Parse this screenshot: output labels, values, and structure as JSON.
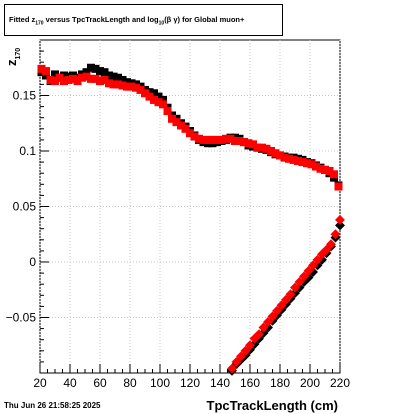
{
  "title": {
    "prefix": "Fitted  z",
    "z_subscript": "170",
    "middle": "  versus TpcTrackLength and log",
    "log_subscript": "10",
    "suffix": "(β   γ) for Global muon+"
  },
  "timestamp": "Thu Jun 26 21:58:25 2025",
  "chart_data": {
    "type": "scatter",
    "title": "Fitted z170 versus TpcTrackLength and log10(βγ) for Global muon+",
    "xlabel": "TpcTrackLength (cm)",
    "ylabel": "z170",
    "ylabel_main": "z",
    "ylabel_sub": "170",
    "xlim": [
      20,
      220
    ],
    "ylim": [
      -0.1,
      0.2
    ],
    "x_ticks": [
      20,
      40,
      60,
      80,
      100,
      120,
      140,
      160,
      180,
      200,
      220
    ],
    "y_ticks": [
      -0.05,
      0,
      0.05,
      0.1,
      0.15
    ],
    "y_tick_labels": [
      "−0.05",
      "0",
      "0.05",
      "0.1",
      "0.15"
    ],
    "grid": true,
    "series": [
      {
        "color": "#000000",
        "marker": "square",
        "points": [
          [
            21,
            0.171
          ],
          [
            24,
            0.168
          ],
          [
            27,
            0.163
          ],
          [
            30,
            0.169
          ],
          [
            33,
            0.166
          ],
          [
            36,
            0.168
          ],
          [
            39,
            0.167
          ],
          [
            42,
            0.168
          ],
          [
            45,
            0.166
          ],
          [
            48,
            0.169
          ],
          [
            51,
            0.171
          ],
          [
            54,
            0.175
          ],
          [
            57,
            0.174
          ],
          [
            60,
            0.172
          ],
          [
            63,
            0.171
          ],
          [
            66,
            0.168
          ],
          [
            69,
            0.167
          ],
          [
            72,
            0.166
          ],
          [
            75,
            0.164
          ],
          [
            78,
            0.162
          ],
          [
            81,
            0.161
          ],
          [
            84,
            0.16
          ],
          [
            87,
            0.158
          ],
          [
            90,
            0.155
          ],
          [
            93,
            0.153
          ],
          [
            96,
            0.152
          ],
          [
            99,
            0.149
          ],
          [
            102,
            0.146
          ],
          [
            105,
            0.139
          ],
          [
            108,
            0.132
          ],
          [
            111,
            0.129
          ],
          [
            114,
            0.125
          ],
          [
            117,
            0.122
          ],
          [
            120,
            0.118
          ],
          [
            123,
            0.114
          ],
          [
            126,
            0.11
          ],
          [
            129,
            0.108
          ],
          [
            132,
            0.107
          ],
          [
            135,
            0.107
          ],
          [
            138,
            0.108
          ],
          [
            141,
            0.109
          ],
          [
            144,
            0.11
          ],
          [
            147,
            0.112
          ],
          [
            150,
            0.112
          ],
          [
            153,
            0.111
          ],
          [
            156,
            0.108
          ],
          [
            159,
            0.105
          ],
          [
            162,
            0.104
          ],
          [
            165,
            0.103
          ],
          [
            168,
            0.102
          ],
          [
            171,
            0.101
          ],
          [
            174,
            0.099
          ],
          [
            177,
            0.097
          ],
          [
            180,
            0.096
          ],
          [
            183,
            0.095
          ],
          [
            186,
            0.094
          ],
          [
            189,
            0.094
          ],
          [
            192,
            0.093
          ],
          [
            195,
            0.092
          ],
          [
            198,
            0.09
          ],
          [
            201,
            0.089
          ],
          [
            204,
            0.087
          ],
          [
            207,
            0.085
          ],
          [
            210,
            0.083
          ],
          [
            213,
            0.08
          ],
          [
            216,
            0.076
          ],
          [
            219,
            0.069
          ],
          [
            148,
            -0.098
          ],
          [
            151,
            -0.092
          ],
          [
            154,
            -0.088
          ],
          [
            157,
            -0.084
          ],
          [
            160,
            -0.079
          ],
          [
            163,
            -0.074
          ],
          [
            166,
            -0.069
          ],
          [
            169,
            -0.064
          ],
          [
            172,
            -0.059
          ],
          [
            175,
            -0.053
          ],
          [
            178,
            -0.048
          ],
          [
            181,
            -0.043
          ],
          [
            184,
            -0.038
          ],
          [
            187,
            -0.033
          ],
          [
            190,
            -0.028
          ],
          [
            193,
            -0.023
          ],
          [
            196,
            -0.018
          ],
          [
            199,
            -0.014
          ],
          [
            202,
            -0.009
          ],
          [
            205,
            -0.003
          ],
          [
            208,
            0.002
          ],
          [
            211,
            0.008
          ],
          [
            214,
            0.014
          ],
          [
            217,
            0.022
          ],
          [
            220,
            0.033
          ]
        ]
      },
      {
        "color": "#ff0000",
        "marker": "square",
        "points": [
          [
            21,
            0.174
          ],
          [
            24,
            0.172
          ],
          [
            27,
            0.164
          ],
          [
            30,
            0.163
          ],
          [
            33,
            0.166
          ],
          [
            36,
            0.163
          ],
          [
            39,
            0.164
          ],
          [
            42,
            0.165
          ],
          [
            45,
            0.163
          ],
          [
            48,
            0.166
          ],
          [
            51,
            0.167
          ],
          [
            54,
            0.165
          ],
          [
            57,
            0.165
          ],
          [
            60,
            0.163
          ],
          [
            63,
            0.164
          ],
          [
            66,
            0.161
          ],
          [
            69,
            0.16
          ],
          [
            72,
            0.16
          ],
          [
            75,
            0.159
          ],
          [
            78,
            0.158
          ],
          [
            81,
            0.158
          ],
          [
            84,
            0.157
          ],
          [
            87,
            0.155
          ],
          [
            90,
            0.152
          ],
          [
            93,
            0.149
          ],
          [
            96,
            0.146
          ],
          [
            99,
            0.144
          ],
          [
            102,
            0.142
          ],
          [
            105,
            0.136
          ],
          [
            108,
            0.129
          ],
          [
            111,
            0.126
          ],
          [
            114,
            0.123
          ],
          [
            117,
            0.12
          ],
          [
            120,
            0.116
          ],
          [
            123,
            0.113
          ],
          [
            126,
            0.111
          ],
          [
            129,
            0.11
          ],
          [
            132,
            0.11
          ],
          [
            135,
            0.11
          ],
          [
            138,
            0.11
          ],
          [
            141,
            0.11
          ],
          [
            144,
            0.111
          ],
          [
            147,
            0.111
          ],
          [
            150,
            0.109
          ],
          [
            153,
            0.109
          ],
          [
            156,
            0.108
          ],
          [
            159,
            0.107
          ],
          [
            162,
            0.106
          ],
          [
            165,
            0.103
          ],
          [
            168,
            0.103
          ],
          [
            171,
            0.102
          ],
          [
            174,
            0.1
          ],
          [
            177,
            0.098
          ],
          [
            180,
            0.096
          ],
          [
            183,
            0.094
          ],
          [
            186,
            0.093
          ],
          [
            189,
            0.092
          ],
          [
            192,
            0.091
          ],
          [
            195,
            0.09
          ],
          [
            198,
            0.089
          ],
          [
            201,
            0.088
          ],
          [
            204,
            0.086
          ],
          [
            207,
            0.084
          ],
          [
            210,
            0.083
          ],
          [
            213,
            0.082
          ],
          [
            216,
            0.079
          ],
          [
            219,
            0.068
          ],
          [
            148,
            -0.096
          ],
          [
            151,
            -0.09
          ],
          [
            154,
            -0.085
          ],
          [
            157,
            -0.08
          ],
          [
            160,
            -0.075
          ],
          [
            163,
            -0.069
          ],
          [
            166,
            -0.065
          ],
          [
            169,
            -0.059
          ],
          [
            172,
            -0.054
          ],
          [
            175,
            -0.049
          ],
          [
            178,
            -0.044
          ],
          [
            181,
            -0.039
          ],
          [
            184,
            -0.034
          ],
          [
            187,
            -0.029
          ],
          [
            190,
            -0.023
          ],
          [
            193,
            -0.018
          ],
          [
            196,
            -0.013
          ],
          [
            199,
            -0.008
          ],
          [
            202,
            -0.003
          ],
          [
            205,
            0.002
          ],
          [
            208,
            0.007
          ],
          [
            211,
            0.011
          ],
          [
            214,
            0.016
          ],
          [
            217,
            0.025
          ],
          [
            220,
            0.038
          ]
        ]
      }
    ]
  }
}
